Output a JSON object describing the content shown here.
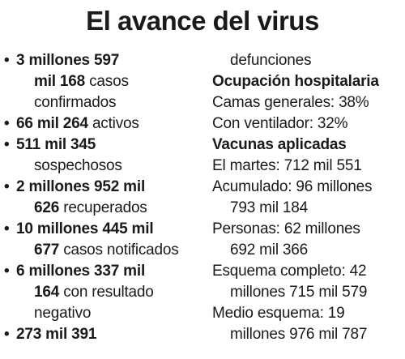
{
  "title": "El avance del virus",
  "left": {
    "confirmados": {
      "line1_bold": "3 millones 597",
      "line2_bold": "mil 168",
      "line2_text": " casos",
      "line3_text": "confirmados"
    },
    "activos": {
      "bold": "66 mil 264",
      "text": " activos"
    },
    "sospechosos": {
      "line1_bold": "511 mil 345",
      "line2_text": "sospechosos"
    },
    "recuperados": {
      "line1_bold": "2 millones 952 mil",
      "line2_bold": "626",
      "line2_text": " recuperados"
    },
    "notificados": {
      "line1_bold": "10 millones 445 mil",
      "line2_bold": "677",
      "line2_text": " casos notificados"
    },
    "negativo": {
      "line1_bold": "6 millones 337 mil",
      "line2_bold": "164",
      "line2_text": " con resultado",
      "line3_text": "negativo"
    },
    "defunciones": {
      "line1_bold": "273 mil 391"
    }
  },
  "right": {
    "defunciones_text": "defunciones",
    "ocupacion": {
      "heading": "Ocupación hospitalaria",
      "camas": "Camas generales: 38%",
      "ventilador": "Con ventilador: 32%"
    },
    "vacunas": {
      "heading": "Vacunas aplicadas",
      "martes": "El martes: 712 mil 551",
      "acumulado_1": "Acumulado: 96 millones",
      "acumulado_2": "793 mil 184",
      "personas_1": "Personas: 62 millones",
      "personas_2": "692 mil 366",
      "completo_1": "Esquema completo: 42",
      "completo_2": "millones 715 mil 579",
      "medio_1": "Medio esquema: 19",
      "medio_2": "millones 976 mil 787"
    }
  }
}
